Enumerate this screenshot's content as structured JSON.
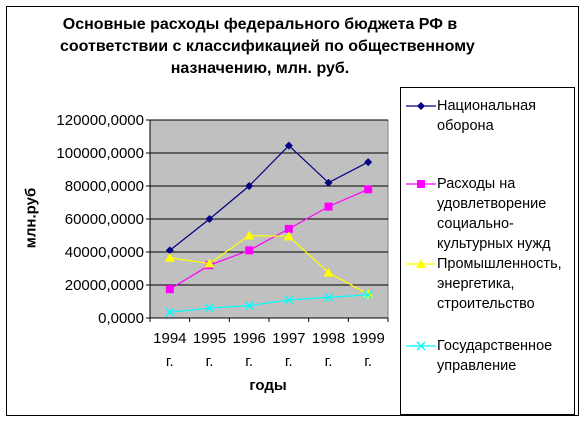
{
  "chart_data": {
    "type": "line",
    "title_lines": [
      "Основные расходы федерального бюджета РФ в",
      "соответствии с классификацией по общественному",
      "назначению, млн. руб."
    ],
    "xlabel": "годы",
    "ylabel": "млн.руб",
    "categories": [
      "1994 г.",
      "1995 г.",
      "1996 г.",
      "1997 г.",
      "1998 г.",
      "1999 г."
    ],
    "ylim": [
      0,
      120000
    ],
    "yticks": [
      "0,0000",
      "20000,0000",
      "40000,0000",
      "60000,0000",
      "80000,0000",
      "100000,0000",
      "120000,0000"
    ],
    "grid": true,
    "plot_background": "#c0c0c0",
    "legend_position": "right",
    "series": [
      {
        "name": "Национальная\nоборона",
        "color": "#000080",
        "marker": "diamond",
        "values": [
          41000,
          60000,
          80000,
          104500,
          82000,
          94500
        ]
      },
      {
        "name": "Расходы на\nудовлетворение\nсоциально-\nкультурных нужд",
        "color": "#ff00ff",
        "marker": "square",
        "values": [
          17500,
          32000,
          41000,
          54000,
          67500,
          78000
        ]
      },
      {
        "name": "Промышленность,\nэнергетика,\nстроительство",
        "color": "#ffff00",
        "marker": "triangle",
        "values": [
          36500,
          33000,
          50000,
          49500,
          27500,
          14500
        ]
      },
      {
        "name": "Государственное\nуправление",
        "color": "#00ffff",
        "marker": "x",
        "values": [
          3500,
          6000,
          7500,
          11000,
          12500,
          14000
        ]
      }
    ]
  }
}
